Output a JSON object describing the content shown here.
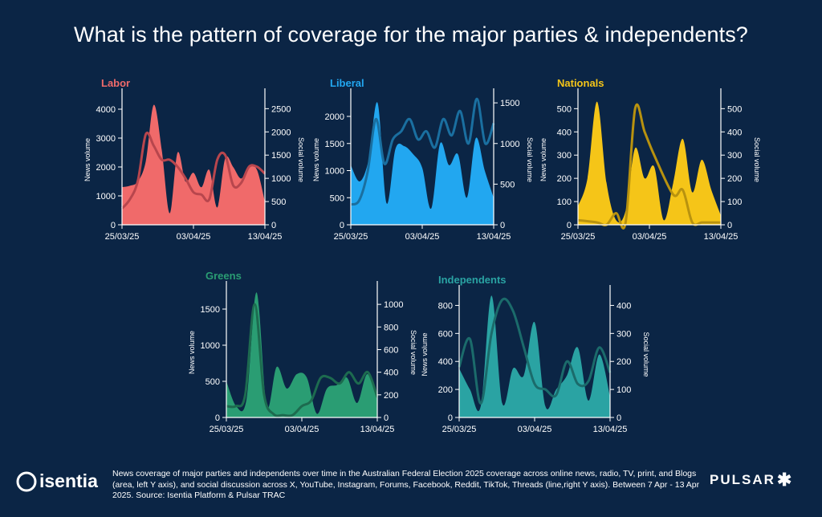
{
  "title": "What is the pattern of coverage for the major parties & independents?",
  "footer": {
    "caption": "News coverage of major parties and independents over time in the Australian Federal Election 2025 coverage across online news, radio, TV, print, and Blogs (area, left Y axis), and social discussion across X, YouTube, Instagram, Forums, Facebook, Reddit, TikTok, Threads (line,right Y axis). Between 7 Apr - 13 Apr 2025. Source: Isentia Platform & Pulsar TRAC",
    "logo_left": "isentia",
    "logo_right": "PULSAR",
    "logo_right_icon": "asterisk-icon"
  },
  "chart_data": [
    {
      "type": "area",
      "title": "Labor",
      "color": "#f06a6a",
      "line_color": "#b8464d",
      "ylabel": "News volume",
      "y2label": "Social volume",
      "ylim": [
        0,
        4500
      ],
      "yticks": [
        0,
        1000,
        2000,
        3000,
        4000
      ],
      "y2lim": [
        0,
        2800
      ],
      "y2ticks": [
        0,
        500,
        1000,
        1500,
        2000,
        2500
      ],
      "xticks": [
        "25/03/25",
        "03/04/25",
        "13/04/25"
      ],
      "news": [
        1300,
        1350,
        1500,
        2200,
        4150,
        2600,
        400,
        2500,
        1500,
        1800,
        1300,
        1900,
        600,
        2300,
        2000,
        1600,
        2000,
        1900,
        800
      ],
      "social": [
        350,
        550,
        950,
        1950,
        1700,
        1400,
        1400,
        1250,
        1000,
        700,
        650,
        550,
        1400,
        1500,
        850,
        900,
        1250,
        1250,
        1100
      ]
    },
    {
      "type": "area",
      "title": "Liberal",
      "color": "#22a7f0",
      "line_color": "#1a6fa0",
      "ylabel": "News volume",
      "y2label": "Social volume",
      "ylim": [
        0,
        2400
      ],
      "yticks": [
        0,
        500,
        1000,
        1500,
        2000
      ],
      "y2lim": [
        0,
        1600
      ],
      "y2ticks": [
        0,
        500,
        1000,
        1500
      ],
      "xticks": [
        "25/03/25",
        "03/04/25",
        "13/04/25"
      ],
      "news": [
        1100,
        800,
        1200,
        2250,
        400,
        1400,
        1450,
        1300,
        1050,
        300,
        1500,
        1100,
        1300,
        500,
        1600,
        1000,
        500
      ],
      "social": [
        250,
        300,
        650,
        1300,
        750,
        1050,
        1150,
        1300,
        1050,
        1150,
        950,
        1300,
        1100,
        1400,
        1000,
        1550,
        1000,
        1250
      ],
      "social_x": [
        0,
        1,
        2,
        3,
        4,
        5,
        6,
        7,
        8,
        9,
        10,
        11,
        12,
        13,
        14,
        15,
        16,
        17
      ]
    },
    {
      "type": "area",
      "title": "Nationals",
      "color": "#f5c518",
      "line_color": "#b8920f",
      "ylabel": "News volume",
      "y2label": "Social volume",
      "ylim": [
        0,
        560
      ],
      "yticks": [
        0,
        100,
        200,
        300,
        400,
        500
      ],
      "y2lim": [
        0,
        560
      ],
      "y2ticks": [
        0,
        100,
        200,
        300,
        400,
        500
      ],
      "xticks": [
        "25/03/25",
        "03/04/25",
        "13/04/25"
      ],
      "news": [
        80,
        200,
        530,
        180,
        20,
        60,
        330,
        200,
        250,
        20,
        180,
        370,
        140,
        280,
        150,
        40
      ],
      "social": [
        20,
        10,
        0,
        50,
        10,
        500,
        400,
        300,
        130,
        150,
        10,
        10,
        10,
        10
      ],
      "social_x": [
        0,
        2,
        3,
        4,
        5,
        6,
        7,
        8,
        10,
        11,
        12,
        13,
        14,
        15
      ]
    },
    {
      "type": "area",
      "title": "Greens",
      "color": "#2a9d73",
      "line_color": "#1d6b4f",
      "ylabel": "News volume",
      "y2label": "Social volume",
      "ylim": [
        0,
        1800
      ],
      "yticks": [
        0,
        500,
        1000,
        1500
      ],
      "y2lim": [
        0,
        1150
      ],
      "y2ticks": [
        0,
        200,
        400,
        600,
        800,
        1000
      ],
      "xticks": [
        "25/03/25",
        "03/04/25",
        "13/04/25"
      ],
      "news": [
        500,
        150,
        250,
        1730,
        150,
        700,
        400,
        600,
        550,
        50,
        400,
        450,
        550,
        200,
        600,
        250
      ],
      "social": [
        100,
        100,
        200,
        1000,
        200,
        30,
        20,
        20,
        100,
        150,
        350,
        350,
        300,
        400,
        300,
        400,
        180
      ],
      "social_x": [
        0,
        1,
        2,
        3,
        4,
        5,
        6,
        7,
        8,
        9,
        10,
        11,
        12,
        13,
        14,
        15,
        16
      ]
    },
    {
      "type": "area",
      "title": "Independents",
      "color": "#2aa3a3",
      "line_color": "#1b6b6b",
      "ylabel": "News volume",
      "y2label": "Social volume",
      "ylim": [
        0,
        900
      ],
      "yticks": [
        0,
        200,
        400,
        600,
        800
      ],
      "y2lim": [
        0,
        450
      ],
      "y2ticks": [
        0,
        100,
        200,
        300,
        400
      ],
      "xticks": [
        "25/03/25",
        "03/04/25",
        "13/04/25"
      ],
      "news": [
        350,
        200,
        80,
        870,
        100,
        350,
        300,
        680,
        80,
        200,
        300,
        500,
        120,
        450,
        150
      ],
      "social": [
        180,
        280,
        50,
        300,
        420,
        380,
        250,
        120,
        100,
        80,
        200,
        120,
        130,
        250,
        160
      ],
      "social_x": [
        0,
        1,
        2,
        3,
        4,
        5,
        6,
        7,
        8,
        9,
        10,
        11,
        12,
        13,
        14
      ]
    }
  ]
}
